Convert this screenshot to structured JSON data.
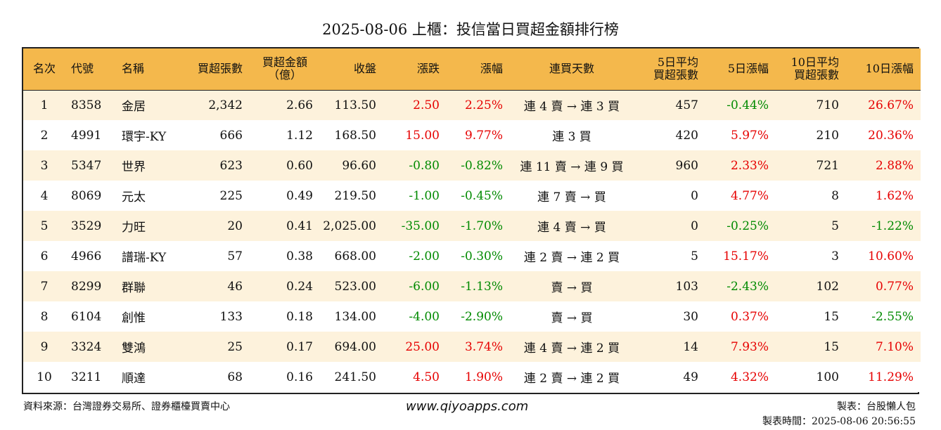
{
  "title": "2025-08-06 上櫃：投信當日買超金額排行榜",
  "headers": {
    "rank": "名次",
    "code": "代號",
    "name": "名稱",
    "net_lots": "買超張數",
    "amount_l1": "買超金額",
    "amount_l2": "（億）",
    "close": "收盤",
    "change": "漲跌",
    "pct": "漲幅",
    "streak": "連買天數",
    "avg5_l1": "5日平均",
    "avg5_l2": "買超張數",
    "pct5": "5日漲幅",
    "avg10_l1": "10日平均",
    "avg10_l2": "買超張數",
    "pct10": "10日漲幅"
  },
  "rows": [
    {
      "rank": "1",
      "code": "8358",
      "name": "金居",
      "net_lots": "2,342",
      "amount": "2.66",
      "close": "113.50",
      "change": "2.50",
      "change_color": "red",
      "pct": "2.25%",
      "pct_color": "red",
      "streak": "連 4 賣 → 連 3 買",
      "avg5": "457",
      "pct5": "-0.44%",
      "pct5_color": "green",
      "avg10": "710",
      "pct10": "26.67%",
      "pct10_color": "red"
    },
    {
      "rank": "2",
      "code": "4991",
      "name": "環宇-KY",
      "net_lots": "666",
      "amount": "1.12",
      "close": "168.50",
      "change": "15.00",
      "change_color": "red",
      "pct": "9.77%",
      "pct_color": "red",
      "streak": "連 3 買",
      "avg5": "420",
      "pct5": "5.97%",
      "pct5_color": "red",
      "avg10": "210",
      "pct10": "20.36%",
      "pct10_color": "red"
    },
    {
      "rank": "3",
      "code": "5347",
      "name": "世界",
      "net_lots": "623",
      "amount": "0.60",
      "close": "96.60",
      "change": "-0.80",
      "change_color": "green",
      "pct": "-0.82%",
      "pct_color": "green",
      "streak": "連 11 賣 → 連 9 買",
      "avg5": "960",
      "pct5": "2.33%",
      "pct5_color": "red",
      "avg10": "721",
      "pct10": "2.88%",
      "pct10_color": "red"
    },
    {
      "rank": "4",
      "code": "8069",
      "name": "元太",
      "net_lots": "225",
      "amount": "0.49",
      "close": "219.50",
      "change": "-1.00",
      "change_color": "green",
      "pct": "-0.45%",
      "pct_color": "green",
      "streak": "連 7 賣 → 買",
      "avg5": "0",
      "pct5": "4.77%",
      "pct5_color": "red",
      "avg10": "8",
      "pct10": "1.62%",
      "pct10_color": "red"
    },
    {
      "rank": "5",
      "code": "3529",
      "name": "力旺",
      "net_lots": "20",
      "amount": "0.41",
      "close": "2,025.00",
      "change": "-35.00",
      "change_color": "green",
      "pct": "-1.70%",
      "pct_color": "green",
      "streak": "連 4 賣 → 買",
      "avg5": "0",
      "pct5": "-0.25%",
      "pct5_color": "green",
      "avg10": "5",
      "pct10": "-1.22%",
      "pct10_color": "green"
    },
    {
      "rank": "6",
      "code": "4966",
      "name": "譜瑞-KY",
      "net_lots": "57",
      "amount": "0.38",
      "close": "668.00",
      "change": "-2.00",
      "change_color": "green",
      "pct": "-0.30%",
      "pct_color": "green",
      "streak": "連 2 賣 → 連 2 買",
      "avg5": "5",
      "pct5": "15.17%",
      "pct5_color": "red",
      "avg10": "3",
      "pct10": "10.60%",
      "pct10_color": "red"
    },
    {
      "rank": "7",
      "code": "8299",
      "name": "群聯",
      "net_lots": "46",
      "amount": "0.24",
      "close": "523.00",
      "change": "-6.00",
      "change_color": "green",
      "pct": "-1.13%",
      "pct_color": "green",
      "streak": "賣 → 買",
      "avg5": "103",
      "pct5": "-2.43%",
      "pct5_color": "green",
      "avg10": "102",
      "pct10": "0.77%",
      "pct10_color": "red"
    },
    {
      "rank": "8",
      "code": "6104",
      "name": "創惟",
      "net_lots": "133",
      "amount": "0.18",
      "close": "134.00",
      "change": "-4.00",
      "change_color": "green",
      "pct": "-2.90%",
      "pct_color": "green",
      "streak": "賣 → 買",
      "avg5": "30",
      "pct5": "0.37%",
      "pct5_color": "red",
      "avg10": "15",
      "pct10": "-2.55%",
      "pct10_color": "green"
    },
    {
      "rank": "9",
      "code": "3324",
      "name": "雙鴻",
      "net_lots": "25",
      "amount": "0.17",
      "close": "694.00",
      "change": "25.00",
      "change_color": "red",
      "pct": "3.74%",
      "pct_color": "red",
      "streak": "連 4 賣 → 連 2 買",
      "avg5": "14",
      "pct5": "7.93%",
      "pct5_color": "red",
      "avg10": "15",
      "pct10": "7.10%",
      "pct10_color": "red"
    },
    {
      "rank": "10",
      "code": "3211",
      "name": "順達",
      "net_lots": "68",
      "amount": "0.16",
      "close": "241.50",
      "change": "4.50",
      "change_color": "red",
      "pct": "1.90%",
      "pct_color": "red",
      "streak": "連 2 賣 → 連 2 買",
      "avg5": "49",
      "pct5": "4.32%",
      "pct5_color": "red",
      "avg10": "100",
      "pct10": "11.29%",
      "pct10_color": "red"
    }
  ],
  "footer": {
    "source": "資料來源：台灣證券交易所、證券櫃檯買賣中心",
    "website": "www.qiyoapps.com",
    "author": "製表：台股懶人包",
    "timestamp": "製表時間：2025-08-06 20:56:55"
  },
  "colors": {
    "header_bg": "#f4b84c",
    "stripe_bg": "#fdf2dc",
    "up": "#e60000",
    "down": "#008a00"
  }
}
